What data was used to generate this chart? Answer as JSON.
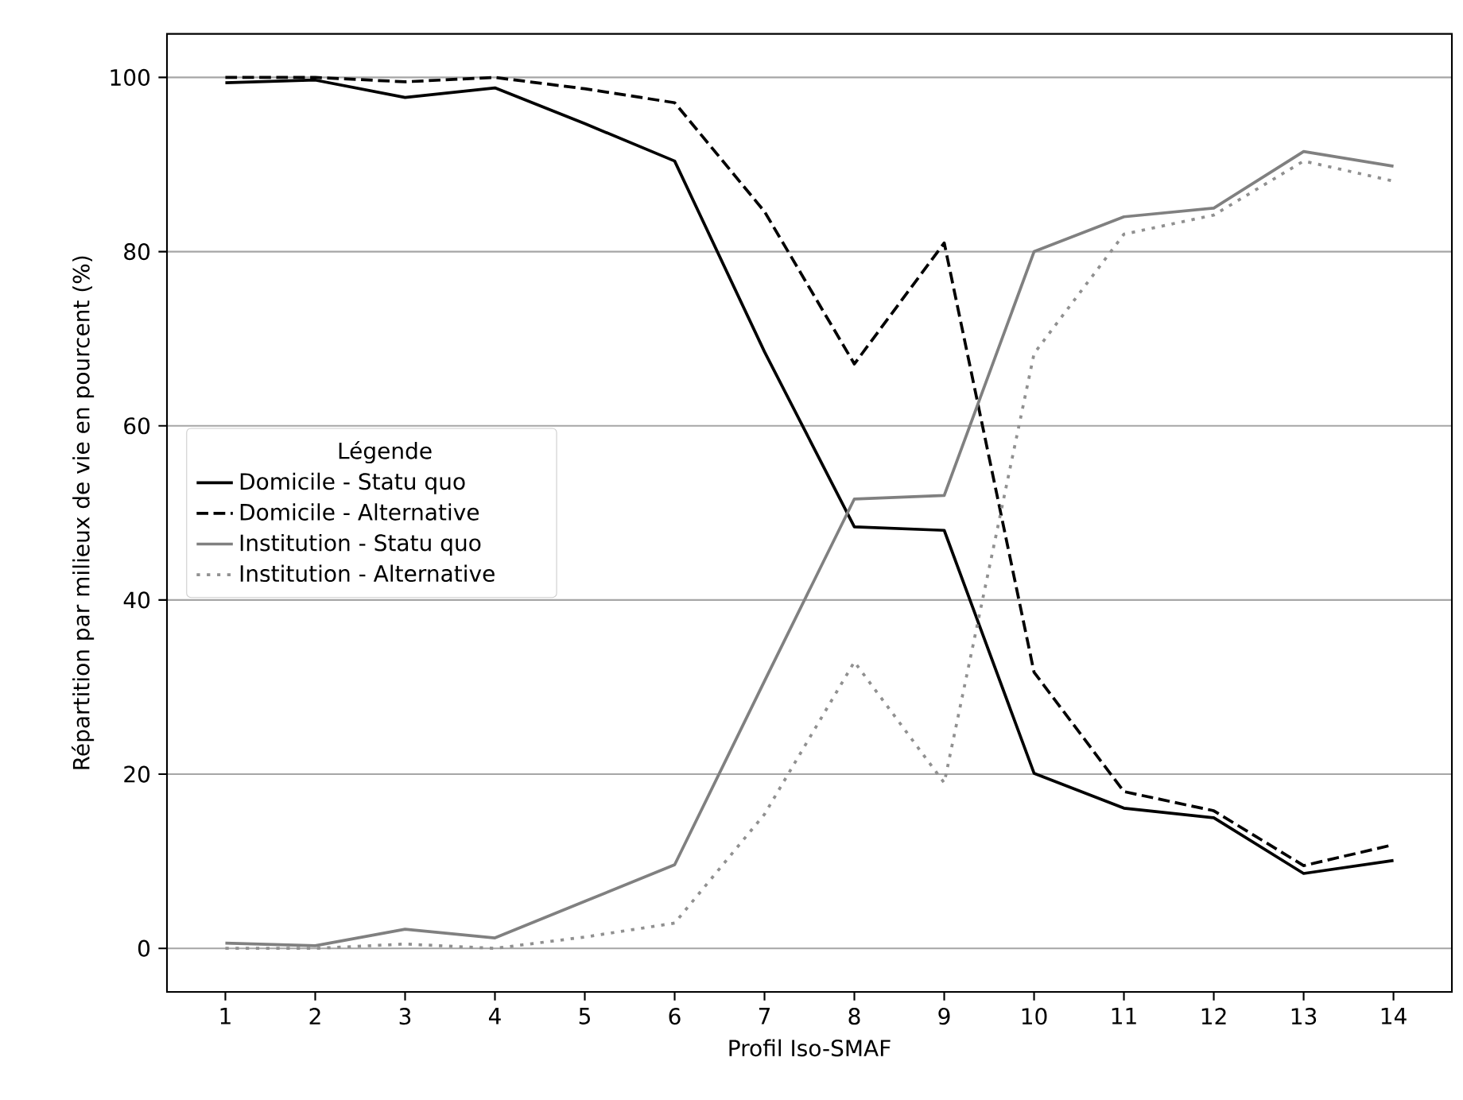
{
  "chart_data": {
    "type": "line",
    "xlabel": "Profil Iso-SMAF",
    "ylabel": "Répartition par milieux de vie en pourcent (%)",
    "legend_title": "Légende",
    "x": [
      1,
      2,
      3,
      4,
      5,
      6,
      7,
      8,
      9,
      10,
      11,
      12,
      13,
      14
    ],
    "xlim": [
      0.35,
      14.65
    ],
    "xticks": [
      1,
      2,
      3,
      4,
      5,
      6,
      7,
      8,
      9,
      10,
      11,
      12,
      13,
      14
    ],
    "ylim": [
      -5,
      105
    ],
    "yticks": [
      0,
      20,
      40,
      60,
      80,
      100
    ],
    "grid": "y",
    "legend": "left",
    "marker": "none",
    "series": [
      {
        "name": "Domicile - Statu quo",
        "color": "#000000",
        "line_style": "solid",
        "values": [
          99.4,
          99.7,
          97.7,
          98.8,
          94.7,
          90.4,
          68.5,
          48.4,
          48.0,
          20.1,
          16.1,
          15.0,
          8.6,
          10.1
        ]
      },
      {
        "name": "Domicile - Alternative",
        "color": "#000000",
        "line_style": "dashed",
        "values": [
          100,
          100,
          99.5,
          100,
          98.7,
          97.1,
          84.6,
          67.1,
          81.0,
          31.7,
          18.0,
          15.8,
          9.5,
          11.9
        ]
      },
      {
        "name": "Institution - Statu quo",
        "color": "#808080",
        "line_style": "solid",
        "values": [
          0.6,
          0.3,
          2.2,
          1.2,
          5.4,
          9.6,
          30.7,
          51.6,
          52.0,
          80.0,
          84.0,
          85.0,
          91.5,
          89.8
        ]
      },
      {
        "name": "Institution - Alternative",
        "color": "#909090",
        "line_style": "dotted",
        "values": [
          0,
          0,
          0.5,
          0,
          1.3,
          2.9,
          15.4,
          32.9,
          19.0,
          68.3,
          82.0,
          84.2,
          90.4,
          88.1
        ]
      }
    ]
  }
}
